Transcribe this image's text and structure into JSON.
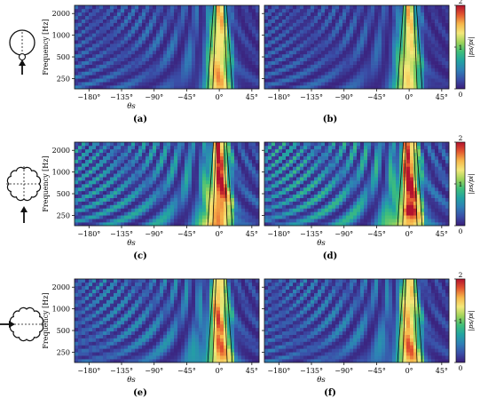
{
  "colorscale": [
    "#3b1e7a",
    "#3a4fa8",
    "#2f7fb6",
    "#22a3a3",
    "#3fbf7a",
    "#9fd45a",
    "#f4e87a",
    "#f6b74a",
    "#e3562f",
    "#b3122e"
  ],
  "chart_data": [
    {
      "type": "heatmap",
      "label": "(a)",
      "row": 0,
      "col": 0,
      "xlabel": "θs",
      "ylabel": "Frequency [Hz]",
      "x_ticks": [
        -180,
        -135,
        -90,
        -45,
        0,
        45
      ],
      "x_tick_labels": [
        "−180°",
        "−135°",
        "−90°",
        "−45°",
        "0°",
        "45°"
      ],
      "y_ticks": [
        250,
        500,
        1000,
        2000
      ],
      "y_tick_labels": [
        "250",
        "500",
        "1000",
        "2000"
      ],
      "xlim": [
        -200,
        55
      ],
      "ylim": [
        180,
        2600
      ],
      "yscale": "log",
      "peak_intensity": 1.3,
      "side_intensity": 0.45,
      "hotspot": null
    },
    {
      "type": "heatmap",
      "label": "(b)",
      "row": 0,
      "col": 1,
      "xlabel": "",
      "ylabel": "",
      "x_ticks": [
        -180,
        -135,
        -90,
        -45,
        0,
        45
      ],
      "x_tick_labels": [
        "−180°",
        "−135°",
        "−90°",
        "−45°",
        "0°",
        "45°"
      ],
      "y_ticks": [
        250,
        500,
        1000,
        2000
      ],
      "y_tick_labels": [],
      "xlim": [
        -200,
        55
      ],
      "ylim": [
        180,
        2600
      ],
      "yscale": "log",
      "peak_intensity": 1.25,
      "side_intensity": 0.4,
      "hotspot": null,
      "colorbar": {
        "label": "|ps/pi|",
        "ticks": [
          0,
          1,
          2
        ],
        "tick_labels": [
          "0",
          "1",
          "2"
        ]
      }
    },
    {
      "type": "heatmap",
      "label": "(c)",
      "row": 1,
      "col": 0,
      "xlabel": "θs",
      "ylabel": "Frequency [Hz]",
      "x_ticks": [
        -180,
        -135,
        -90,
        -45,
        0,
        45
      ],
      "x_tick_labels": [
        "−180°",
        "−135°",
        "−90°",
        "−45°",
        "0°",
        "45°"
      ],
      "y_ticks": [
        250,
        500,
        1000,
        2000
      ],
      "y_tick_labels": [
        "250",
        "500",
        "1000",
        "2000"
      ],
      "xlim": [
        -200,
        55
      ],
      "ylim": [
        180,
        2600
      ],
      "yscale": "log",
      "peak_intensity": 1.55,
      "side_intensity": 0.75,
      "hotspot": null
    },
    {
      "type": "heatmap",
      "label": "(d)",
      "row": 1,
      "col": 1,
      "xlabel": "θs",
      "ylabel": "",
      "x_ticks": [
        -180,
        -135,
        -90,
        -45,
        0,
        45
      ],
      "x_tick_labels": [
        "−180°",
        "−135°",
        "−90°",
        "−45°",
        "0°",
        "45°"
      ],
      "y_ticks": [
        250,
        500,
        1000,
        2000
      ],
      "y_tick_labels": [],
      "xlim": [
        -200,
        55
      ],
      "ylim": [
        180,
        2600
      ],
      "yscale": "log",
      "peak_intensity": 1.5,
      "side_intensity": 0.85,
      "hotspot": {
        "x": 0,
        "y": 290,
        "value": 1.9
      },
      "colorbar": {
        "label": "|ps/pi|",
        "ticks": [
          0,
          1,
          2
        ],
        "tick_labels": [
          "0",
          "1",
          "2"
        ]
      }
    },
    {
      "type": "heatmap",
      "label": "(e)",
      "row": 2,
      "col": 0,
      "xlabel": "θs",
      "ylabel": "Frequency [Hz]",
      "x_ticks": [
        -180,
        -135,
        -90,
        -45,
        0,
        45
      ],
      "x_tick_labels": [
        "−180°",
        "−135°",
        "−90°",
        "−45°",
        "0°",
        "45°"
      ],
      "y_ticks": [
        250,
        500,
        1000,
        2000
      ],
      "y_tick_labels": [
        "250",
        "500",
        "1000",
        "2000"
      ],
      "xlim": [
        -200,
        55
      ],
      "ylim": [
        180,
        2600
      ],
      "yscale": "log",
      "peak_intensity": 1.35,
      "side_intensity": 0.6,
      "hotspot": null
    },
    {
      "type": "heatmap",
      "label": "(f)",
      "row": 2,
      "col": 1,
      "xlabel": "θs",
      "ylabel": "",
      "x_ticks": [
        -180,
        -135,
        -90,
        -45,
        0,
        45
      ],
      "x_tick_labels": [
        "−180°",
        "−135°",
        "−90°",
        "−45°",
        "0°",
        "45°"
      ],
      "y_ticks": [
        250,
        500,
        1000,
        2000
      ],
      "y_tick_labels": [],
      "xlim": [
        -200,
        55
      ],
      "ylim": [
        180,
        2600
      ],
      "yscale": "log",
      "peak_intensity": 1.3,
      "side_intensity": 0.55,
      "hotspot": null,
      "colorbar": {
        "label": "|ps/pi|",
        "ticks": [
          0,
          1,
          2
        ],
        "tick_labels": [
          "0",
          "1",
          "2"
        ]
      }
    }
  ]
}
